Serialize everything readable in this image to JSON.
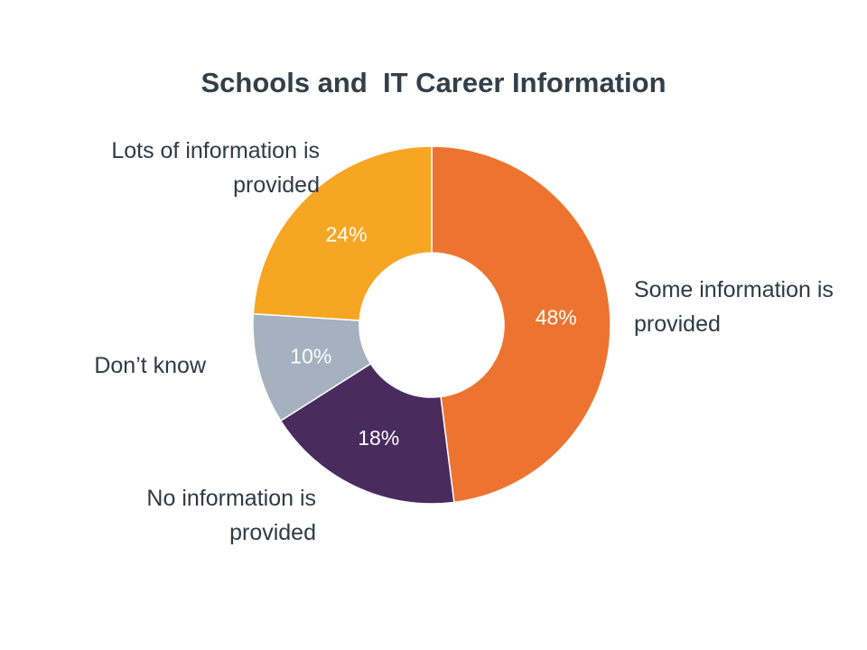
{
  "chart_data": {
    "type": "pie",
    "donut": true,
    "title": "Schools and  IT Career Information",
    "slices": [
      {
        "label": "Some information is provided",
        "value": 48,
        "value_label": "48%",
        "color": "#ed7430"
      },
      {
        "label": "No information is provided",
        "value": 18,
        "value_label": "18%",
        "color": "#4a2b5e"
      },
      {
        "label": "Don’t know",
        "value": 10,
        "value_label": "10%",
        "color": "#a5b1bf"
      },
      {
        "label": "Lots of information is provided",
        "value": 24,
        "value_label": "24%",
        "color": "#f6a623"
      }
    ],
    "label_text_color": "#2f3a44",
    "title_color": "#333f48"
  }
}
